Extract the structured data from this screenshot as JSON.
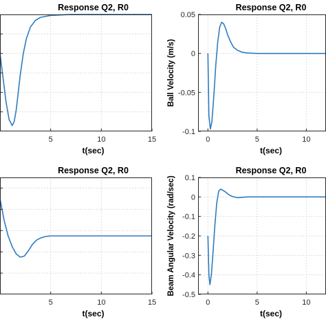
{
  "figure": {
    "background": "#ffffff",
    "line_color": "#2f7bbf"
  },
  "chart_data": [
    {
      "type": "line",
      "title": "Response Q2, R0",
      "xlabel": "t(sec)",
      "ylabel": "",
      "xlim": [
        0,
        15
      ],
      "ylim": [
        -1.0,
        0.2
      ],
      "xticks": [
        0,
        5,
        10,
        15
      ],
      "xtick_labels": [
        "",
        "5",
        "10",
        "15"
      ],
      "yticks": [
        -0.8,
        -0.6,
        -0.4,
        -0.2,
        0
      ],
      "ytick_labels": [
        "",
        "",
        "",
        "",
        ""
      ],
      "grid": true,
      "series": [
        {
          "x": [
            0,
            0.3,
            0.6,
            0.9,
            1.2,
            1.4,
            1.6,
            1.8,
            2.0,
            2.3,
            2.6,
            3.0,
            3.5,
            4.0,
            5.0,
            6.0,
            7.0,
            8.0,
            10.0,
            12.5,
            15.0
          ],
          "y": [
            -0.2,
            -0.45,
            -0.7,
            -0.88,
            -0.94,
            -0.9,
            -0.78,
            -0.6,
            -0.42,
            -0.2,
            -0.05,
            0.07,
            0.14,
            0.17,
            0.19,
            0.195,
            0.2,
            0.2,
            0.2,
            0.2,
            0.2
          ]
        }
      ]
    },
    {
      "type": "line",
      "title": "Response Q2, R0",
      "xlabel": "t(sec)",
      "ylabel": "Ball Velocity (m/s)",
      "xlim": [
        -1.0,
        12.0
      ],
      "ylim": [
        -0.1,
        0.05
      ],
      "xticks": [
        0,
        5,
        10
      ],
      "xtick_labels": [
        "0",
        "5",
        "10"
      ],
      "yticks": [
        -0.1,
        -0.05,
        0,
        0.05
      ],
      "ytick_labels": [
        "-0.1",
        "-0.05",
        "0",
        "0.05"
      ],
      "grid": true,
      "series": [
        {
          "x": [
            0,
            0.1,
            0.25,
            0.4,
            0.6,
            0.8,
            1.0,
            1.2,
            1.4,
            1.6,
            1.8,
            2.0,
            2.3,
            2.6,
            3.0,
            3.5,
            4.0,
            5.0,
            6.0,
            8.0,
            10.0,
            12.0
          ],
          "y": [
            0,
            -0.08,
            -0.097,
            -0.088,
            -0.055,
            -0.015,
            0.015,
            0.034,
            0.04,
            0.038,
            0.032,
            0.024,
            0.015,
            0.008,
            0.004,
            0.0015,
            0.0005,
            0,
            0,
            0,
            0,
            0
          ]
        }
      ]
    },
    {
      "type": "line",
      "title": "Response Q2, R0",
      "xlabel": "t(sec)",
      "ylabel": "",
      "xlim": [
        0,
        15
      ],
      "ylim": [
        -0.6,
        0.5
      ],
      "xticks": [
        0,
        5,
        10,
        15
      ],
      "xtick_labels": [
        "",
        "5",
        "10",
        "15"
      ],
      "yticks": [
        -0.4,
        -0.2,
        0,
        0.2,
        0.4
      ],
      "ytick_labels": [
        "",
        "",
        "",
        "",
        ""
      ],
      "grid": true,
      "series": [
        {
          "x": [
            0,
            0.4,
            0.8,
            1.2,
            1.6,
            2.0,
            2.4,
            2.8,
            3.2,
            3.6,
            4.0,
            4.5,
            5.0,
            5.5,
            6.0,
            7.0,
            8.0,
            10.0,
            12.5,
            15.0
          ],
          "y": [
            0.3,
            0.1,
            -0.05,
            -0.15,
            -0.22,
            -0.25,
            -0.24,
            -0.19,
            -0.13,
            -0.09,
            -0.07,
            -0.055,
            -0.05,
            -0.05,
            -0.05,
            -0.05,
            -0.05,
            -0.05,
            -0.05,
            -0.05
          ]
        }
      ]
    },
    {
      "type": "line",
      "title": "Response Q2, R0",
      "xlabel": "t(sec)",
      "ylabel": "Beam Angular Velocity (rad/sec)",
      "xlim": [
        -1.0,
        12.0
      ],
      "ylim": [
        -0.5,
        0.1
      ],
      "xticks": [
        0,
        5,
        10
      ],
      "xtick_labels": [
        "0",
        "5",
        "10"
      ],
      "yticks": [
        -0.5,
        -0.4,
        -0.3,
        -0.2,
        -0.1,
        0,
        0.1
      ],
      "ytick_labels": [
        "-0.5",
        "-0.4",
        "-0.3",
        "-0.2",
        "-0.1",
        "0",
        "0.1"
      ],
      "grid": true,
      "series": [
        {
          "x": [
            0,
            0.1,
            0.2,
            0.35,
            0.5,
            0.7,
            0.9,
            1.1,
            1.3,
            1.5,
            1.8,
            2.1,
            2.5,
            3.0,
            3.5,
            4.0,
            5.0,
            6.0,
            8.0,
            10.0,
            12.0
          ],
          "y": [
            -0.2,
            -0.4,
            -0.45,
            -0.4,
            -0.3,
            -0.15,
            -0.03,
            0.03,
            0.04,
            0.035,
            0.025,
            0.012,
            0.002,
            -0.004,
            -0.002,
            0,
            0,
            0,
            0,
            0,
            0
          ]
        }
      ]
    }
  ]
}
